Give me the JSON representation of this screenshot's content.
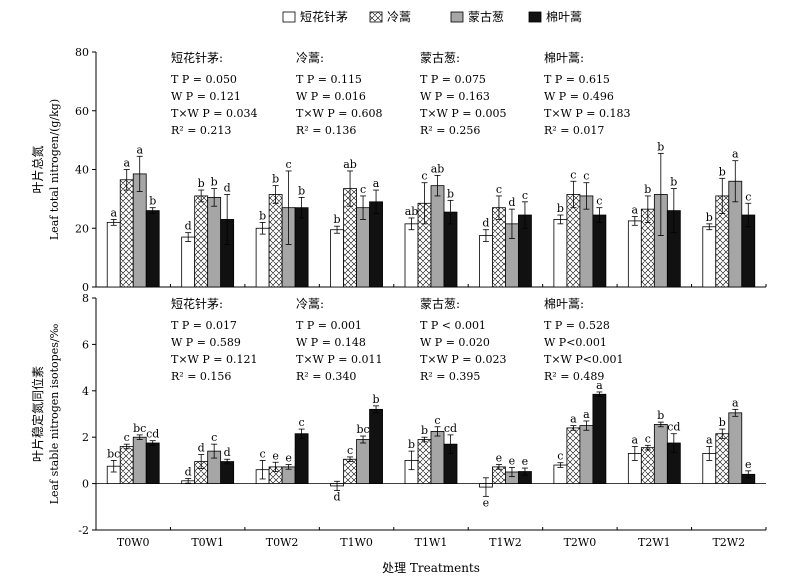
{
  "chart_data": {
    "type": "bar",
    "xlabel": "处理 Treatments",
    "categories": [
      "T0W0",
      "T0W1",
      "T0W2",
      "T1W0",
      "T1W1",
      "T1W2",
      "T2W0",
      "T2W1",
      "T2W2"
    ],
    "legend": {
      "position": "top",
      "entries": [
        {
          "name": "短花针茅",
          "pattern": "white"
        },
        {
          "name": "冷蒿",
          "pattern": "crosshatch"
        },
        {
          "name": "蒙古葱",
          "pattern": "gray"
        },
        {
          "name": "棉叶蒿",
          "pattern": "black"
        }
      ]
    },
    "colors": {
      "white": "#ffffff",
      "gray": "#a6a6a6",
      "black": "#111111",
      "stroke": "#000000"
    },
    "panels": [
      {
        "id": "top",
        "ylabel_cn": "叶片总氮",
        "ylabel_en": "Leaf total nitrogen/(g/kg)",
        "ylim": [
          0,
          80
        ],
        "yticks": [
          0,
          20,
          40,
          60,
          80
        ],
        "series": [
          {
            "name": "短花针茅",
            "values": [
              22,
              17,
              20,
              19.5,
              21.5,
              17.5,
              23,
              22.5,
              20.5
            ],
            "errors": [
              1,
              1.5,
              2,
              1.2,
              2,
              2,
              1.5,
              1.5,
              1
            ],
            "letters": [
              "a",
              "d",
              "b",
              "b",
              "ab",
              "d",
              "b",
              "a",
              "b"
            ]
          },
          {
            "name": "冷蒿",
            "values": [
              36.5,
              31,
              31.5,
              33.5,
              28.5,
              27,
              31.5,
              26.5,
              31
            ],
            "errors": [
              3.5,
              2,
              3,
              6,
              7,
              4,
              4.5,
              4.5,
              6
            ],
            "letters": [
              "a",
              "b",
              "b",
              "ab",
              "c",
              "c",
              "c",
              "b",
              "b"
            ]
          },
          {
            "name": "蒙古葱",
            "values": [
              38.5,
              30.5,
              27,
              27,
              34.5,
              21.5,
              31,
              31.5,
              36
            ],
            "errors": [
              6,
              3,
              12.5,
              4,
              3.5,
              5,
              4.5,
              14,
              7
            ],
            "letters": [
              "a",
              "b",
              "c",
              "c",
              "ab",
              "d",
              "c",
              "b",
              "a"
            ]
          },
          {
            "name": "棉叶蒿",
            "values": [
              26,
              23,
              27,
              29,
              25.5,
              24.5,
              24.5,
              26,
              24.5
            ],
            "errors": [
              1,
              8.5,
              3.5,
              4,
              4,
              4.5,
              2.5,
              7.5,
              4
            ],
            "letters": [
              "b",
              "d",
              "b",
              "a",
              "b",
              "c",
              "c",
              "b",
              "c"
            ]
          }
        ],
        "stats": [
          {
            "species": "短花针茅:",
            "lines": [
              "T  P = 0.050",
              "W  P = 0.121",
              "T×W  P = 0.034",
              "R² = 0.213"
            ]
          },
          {
            "species": "冷蒿:",
            "lines": [
              "T  P = 0.115",
              "W  P = 0.016",
              "T×W  P = 0.608",
              "R² = 0.136"
            ]
          },
          {
            "species": "蒙古葱:",
            "lines": [
              "T  P = 0.075",
              "W  P = 0.163",
              "T×W  P = 0.005",
              "R² = 0.256"
            ]
          },
          {
            "species": "棉叶蒿:",
            "lines": [
              "T  P = 0.615",
              "W  P = 0.496",
              "T×W  P = 0.183",
              "R² = 0.017"
            ]
          }
        ]
      },
      {
        "id": "bottom",
        "ylabel_cn": "叶片稳定氮同位素",
        "ylabel_en": "Leaf stable nitrogen isotopes/‰",
        "ylim": [
          -2,
          8
        ],
        "yticks": [
          -2,
          0,
          2,
          4,
          6,
          8
        ],
        "series": [
          {
            "name": "短花针茅",
            "values": [
              0.75,
              0.12,
              0.6,
              -0.1,
              1.0,
              -0.15,
              0.8,
              1.3,
              1.3
            ],
            "errors": [
              0.25,
              0.1,
              0.4,
              0.2,
              0.4,
              0.4,
              0.1,
              0.3,
              0.3
            ],
            "letters": [
              "bc",
              "d",
              "c",
              "d",
              "b",
              "e",
              "c",
              "a",
              "a"
            ]
          },
          {
            "name": "冷蒿",
            "values": [
              1.6,
              0.95,
              0.72,
              1.05,
              1.9,
              0.72,
              2.4,
              1.55,
              2.15
            ],
            "errors": [
              0.1,
              0.3,
              0.2,
              0.1,
              0.1,
              0.1,
              0.1,
              0.1,
              0.2
            ],
            "letters": [
              "c",
              "d",
              "e",
              "c",
              "b",
              "e",
              "a",
              "c",
              "b"
            ]
          },
          {
            "name": "蒙古葱",
            "values": [
              2.0,
              1.4,
              0.72,
              1.9,
              2.25,
              0.5,
              2.5,
              2.55,
              3.05
            ],
            "errors": [
              0.1,
              0.3,
              0.1,
              0.15,
              0.2,
              0.2,
              0.2,
              0.1,
              0.15
            ],
            "letters": [
              "bc",
              "c",
              "e",
              "bc",
              "c",
              "e",
              "a",
              "b",
              "a"
            ]
          },
          {
            "name": "棉叶蒿",
            "values": [
              1.75,
              0.95,
              2.15,
              3.2,
              1.7,
              0.52,
              3.85,
              1.75,
              0.4
            ],
            "errors": [
              0.1,
              0.1,
              0.2,
              0.15,
              0.4,
              0.15,
              0.1,
              0.4,
              0.15
            ],
            "letters": [
              "cd",
              "d",
              "c",
              "b",
              "cd",
              "e",
              "a",
              "cd",
              "e"
            ]
          }
        ],
        "stats": [
          {
            "species": "短花针茅:",
            "lines": [
              "T  P = 0.017",
              "W  P = 0.589",
              "T×W  P = 0.121",
              "R² = 0.156"
            ]
          },
          {
            "species": "冷蒿:",
            "lines": [
              "T  P = 0.001",
              "W  P = 0.148",
              "T×W  P = 0.011",
              "R² = 0.340"
            ]
          },
          {
            "species": "蒙古葱:",
            "lines": [
              "T  P < 0.001",
              "W  P = 0.020",
              "T×W  P = 0.023",
              "R² = 0.395"
            ]
          },
          {
            "species": "棉叶蒿:",
            "lines": [
              "T  P = 0.528",
              "W  P<0.001",
              "T×W  P<0.001",
              "R² = 0.489"
            ]
          }
        ]
      }
    ]
  }
}
